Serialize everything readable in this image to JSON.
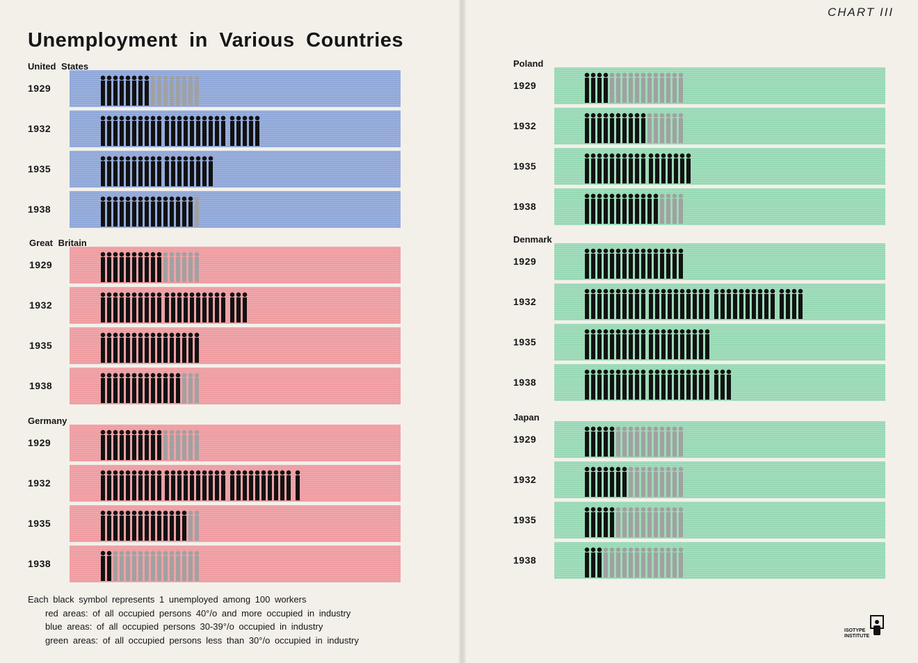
{
  "chart_label": "CHART III",
  "title": "Unemployment in Various Countries",
  "chart_data": {
    "type": "bar",
    "title": "Unemployment in Various Countries",
    "years": [
      "1929",
      "1932",
      "1935",
      "1938"
    ],
    "unit": "Each black symbol represents 1 unemployed among 100 workers",
    "series": [
      {
        "name": "United States",
        "color": "#8ea6d8",
        "area": "blue",
        "values": [
          8,
          25,
          18,
          15
        ],
        "employed_gray": [
          16,
          16,
          16,
          16
        ]
      },
      {
        "name": "Great Britain",
        "color": "#ee9ba0",
        "area": "red",
        "values": [
          10,
          23,
          16,
          13
        ],
        "employed_gray": [
          16,
          16,
          16,
          16
        ]
      },
      {
        "name": "Germany",
        "color": "#ee9ba0",
        "area": "red",
        "values": [
          10,
          31,
          14,
          2
        ],
        "employed_gray": [
          16,
          16,
          16,
          16
        ]
      },
      {
        "name": "Poland",
        "color": "#97d8b4",
        "area": "green",
        "values": [
          4,
          10,
          17,
          12
        ],
        "employed_gray": [
          16,
          16,
          16,
          16
        ]
      },
      {
        "name": "Denmark",
        "color": "#97d8b4",
        "area": "green",
        "values": [
          16,
          34,
          20,
          23
        ],
        "employed_gray": [
          16,
          16,
          16,
          16
        ]
      },
      {
        "name": "Japan",
        "color": "#97d8b4",
        "area": "green",
        "values": [
          5,
          7,
          5,
          3
        ],
        "employed_gray": [
          16,
          16,
          16,
          16
        ]
      }
    ]
  },
  "legend": {
    "line1": "Each black symbol represents 1 unemployed among 100 workers",
    "red": "red areas: of all occupied persons 40°/o and more occupied in industry",
    "blue": "blue areas: of all occupied persons 30-39°/o occupied in industry",
    "green": "green areas: of all occupied persons less than 30°/o occupied in industry"
  },
  "logo": {
    "line1": "ISOTYPE",
    "line2": "INSTITUTE",
    "icon": "isotype-logo-icon"
  }
}
